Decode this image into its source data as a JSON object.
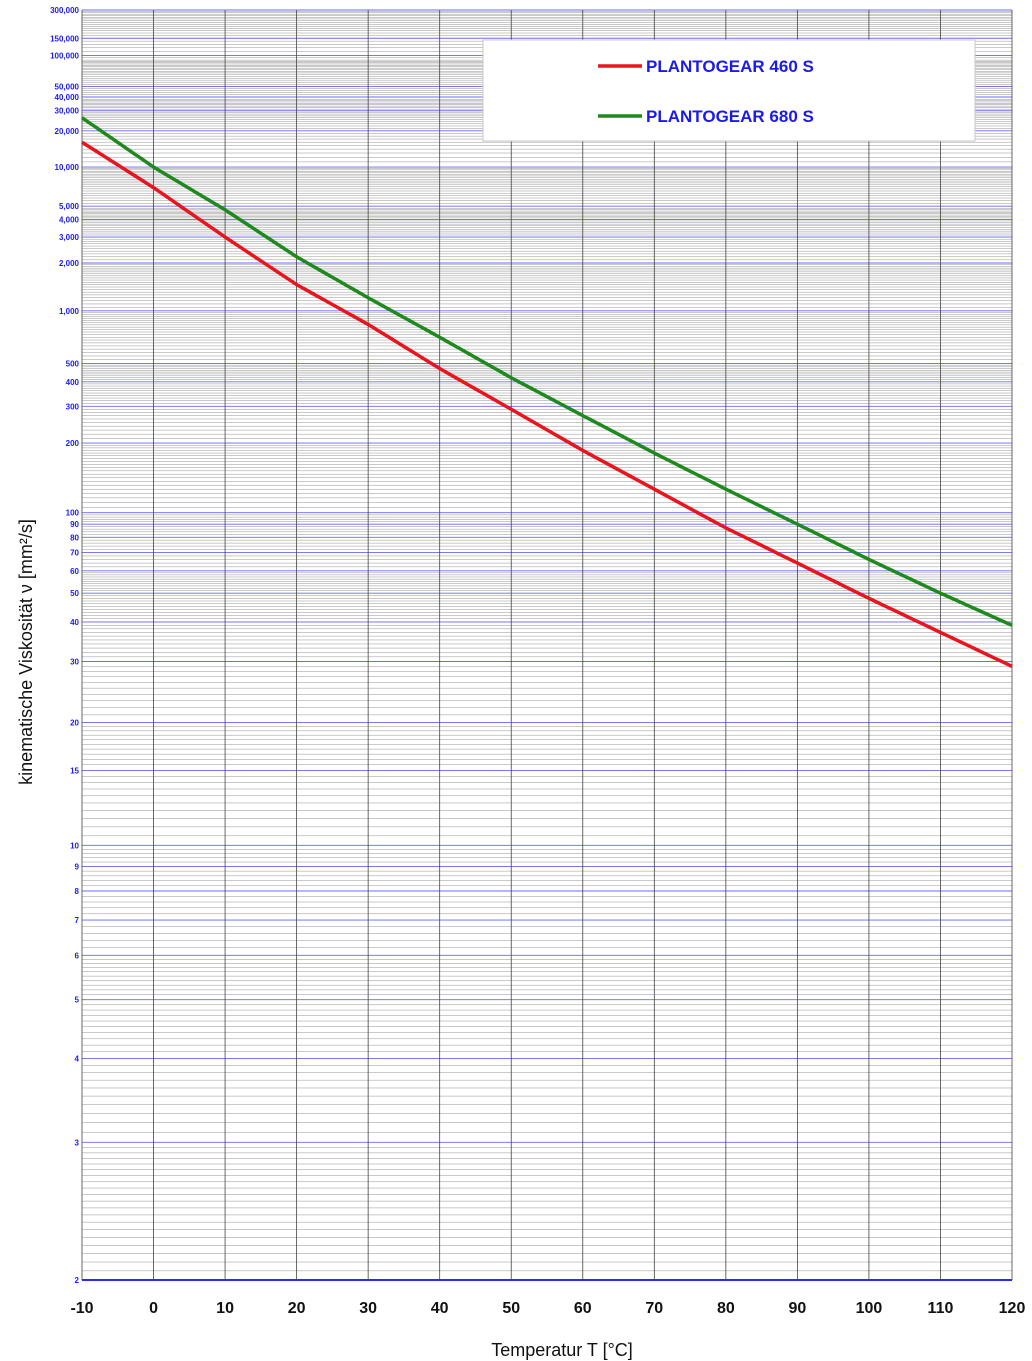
{
  "chart_data": {
    "type": "line",
    "xlabel": "Temperatur T [°C]",
    "ylabel": "kinematische Viskosität ν [mm²/s]",
    "xlim": [
      -10,
      120
    ],
    "ylim": [
      2,
      300000
    ],
    "yscale": "log-log (viscosity-temperature chart)",
    "grid": true,
    "legend_position": "top-right",
    "x_ticks": [
      "-10",
      "0",
      "10",
      "20",
      "30",
      "40",
      "50",
      "60",
      "70",
      "80",
      "90",
      "100",
      "110",
      "120"
    ],
    "y_ticks": [
      {
        "value": 300000,
        "label": "300,000"
      },
      {
        "value": 150000,
        "label": "150,000"
      },
      {
        "value": 100000,
        "label": "100,000"
      },
      {
        "value": 50000,
        "label": "50,000"
      },
      {
        "value": 40000,
        "label": "40,000"
      },
      {
        "value": 30000,
        "label": "30,000"
      },
      {
        "value": 20000,
        "label": "20,000"
      },
      {
        "value": 10000,
        "label": "10,000"
      },
      {
        "value": 5000,
        "label": "5,000"
      },
      {
        "value": 4000,
        "label": "4,000"
      },
      {
        "value": 3000,
        "label": "3,000"
      },
      {
        "value": 2000,
        "label": "2,000"
      },
      {
        "value": 1000,
        "label": "1,000"
      },
      {
        "value": 500,
        "label": "500"
      },
      {
        "value": 400,
        "label": "400"
      },
      {
        "value": 300,
        "label": "300"
      },
      {
        "value": 200,
        "label": "200"
      },
      {
        "value": 100,
        "label": "100"
      },
      {
        "value": 90,
        "label": "90"
      },
      {
        "value": 80,
        "label": "80"
      },
      {
        "value": 70,
        "label": "70"
      },
      {
        "value": 60,
        "label": "60"
      },
      {
        "value": 50,
        "label": "50"
      },
      {
        "value": 40,
        "label": "40"
      },
      {
        "value": 30,
        "label": "30"
      },
      {
        "value": 20,
        "label": "20"
      },
      {
        "value": 15,
        "label": "15"
      },
      {
        "value": 10,
        "label": "10"
      },
      {
        "value": 9,
        "label": "9"
      },
      {
        "value": 8,
        "label": "8"
      },
      {
        "value": 7,
        "label": "7"
      },
      {
        "value": 6,
        "label": "6"
      },
      {
        "value": 5,
        "label": "5"
      },
      {
        "value": 4,
        "label": "4"
      },
      {
        "value": 3,
        "label": "3"
      },
      {
        "value": 2,
        "label": "2"
      }
    ],
    "series": [
      {
        "name": "PLANTOGEAR 460 S",
        "color": "#e8141e",
        "x": [
          -10,
          0,
          10,
          20,
          30,
          40,
          50,
          60,
          70,
          80,
          90,
          100,
          110,
          120
        ],
        "values": [
          16000,
          6900,
          3000,
          1450,
          830,
          470,
          290,
          185,
          125,
          87,
          64,
          48,
          37,
          29
        ]
      },
      {
        "name": "PLANTOGEAR 680 S",
        "color": "#1e8a1e",
        "x": [
          -10,
          0,
          10,
          20,
          30,
          40,
          50,
          60,
          70,
          80,
          90,
          100,
          110,
          120
        ],
        "values": [
          26000,
          10000,
          4700,
          2200,
          1200,
          700,
          420,
          270,
          180,
          125,
          90,
          66,
          50,
          39
        ]
      }
    ]
  }
}
